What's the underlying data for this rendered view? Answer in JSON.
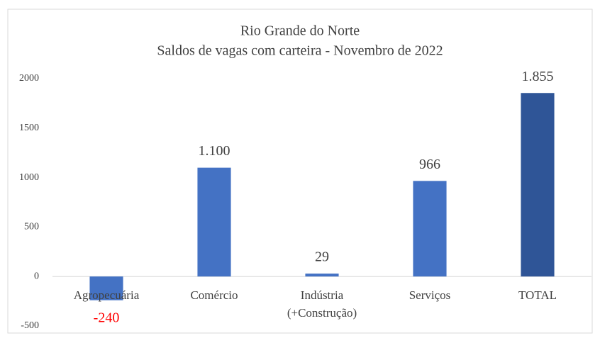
{
  "chart_data": {
    "type": "bar",
    "title": "Rio Grande do Norte",
    "subtitle": "Saldos de vagas com carteira -  Novembro de 2022",
    "categories": [
      "Agropecuária",
      "Comércio",
      "Indústria\n(+Construção)",
      "Serviços",
      "TOTAL"
    ],
    "values": [
      -240,
      1100,
      29,
      966,
      1855
    ],
    "value_labels": [
      "-240",
      "1.100",
      "29",
      "966",
      "1.855"
    ],
    "colors": [
      "#4472c4",
      "#4472c4",
      "#4472c4",
      "#4472c4",
      "#2f5597"
    ],
    "value_label_colors": [
      "#ff0000",
      "#404040",
      "#404040",
      "#404040",
      "#404040"
    ],
    "ylim": [
      -500,
      2000
    ],
    "yticks": [
      -500,
      0,
      500,
      1000,
      1500,
      2000
    ],
    "grid": false
  }
}
